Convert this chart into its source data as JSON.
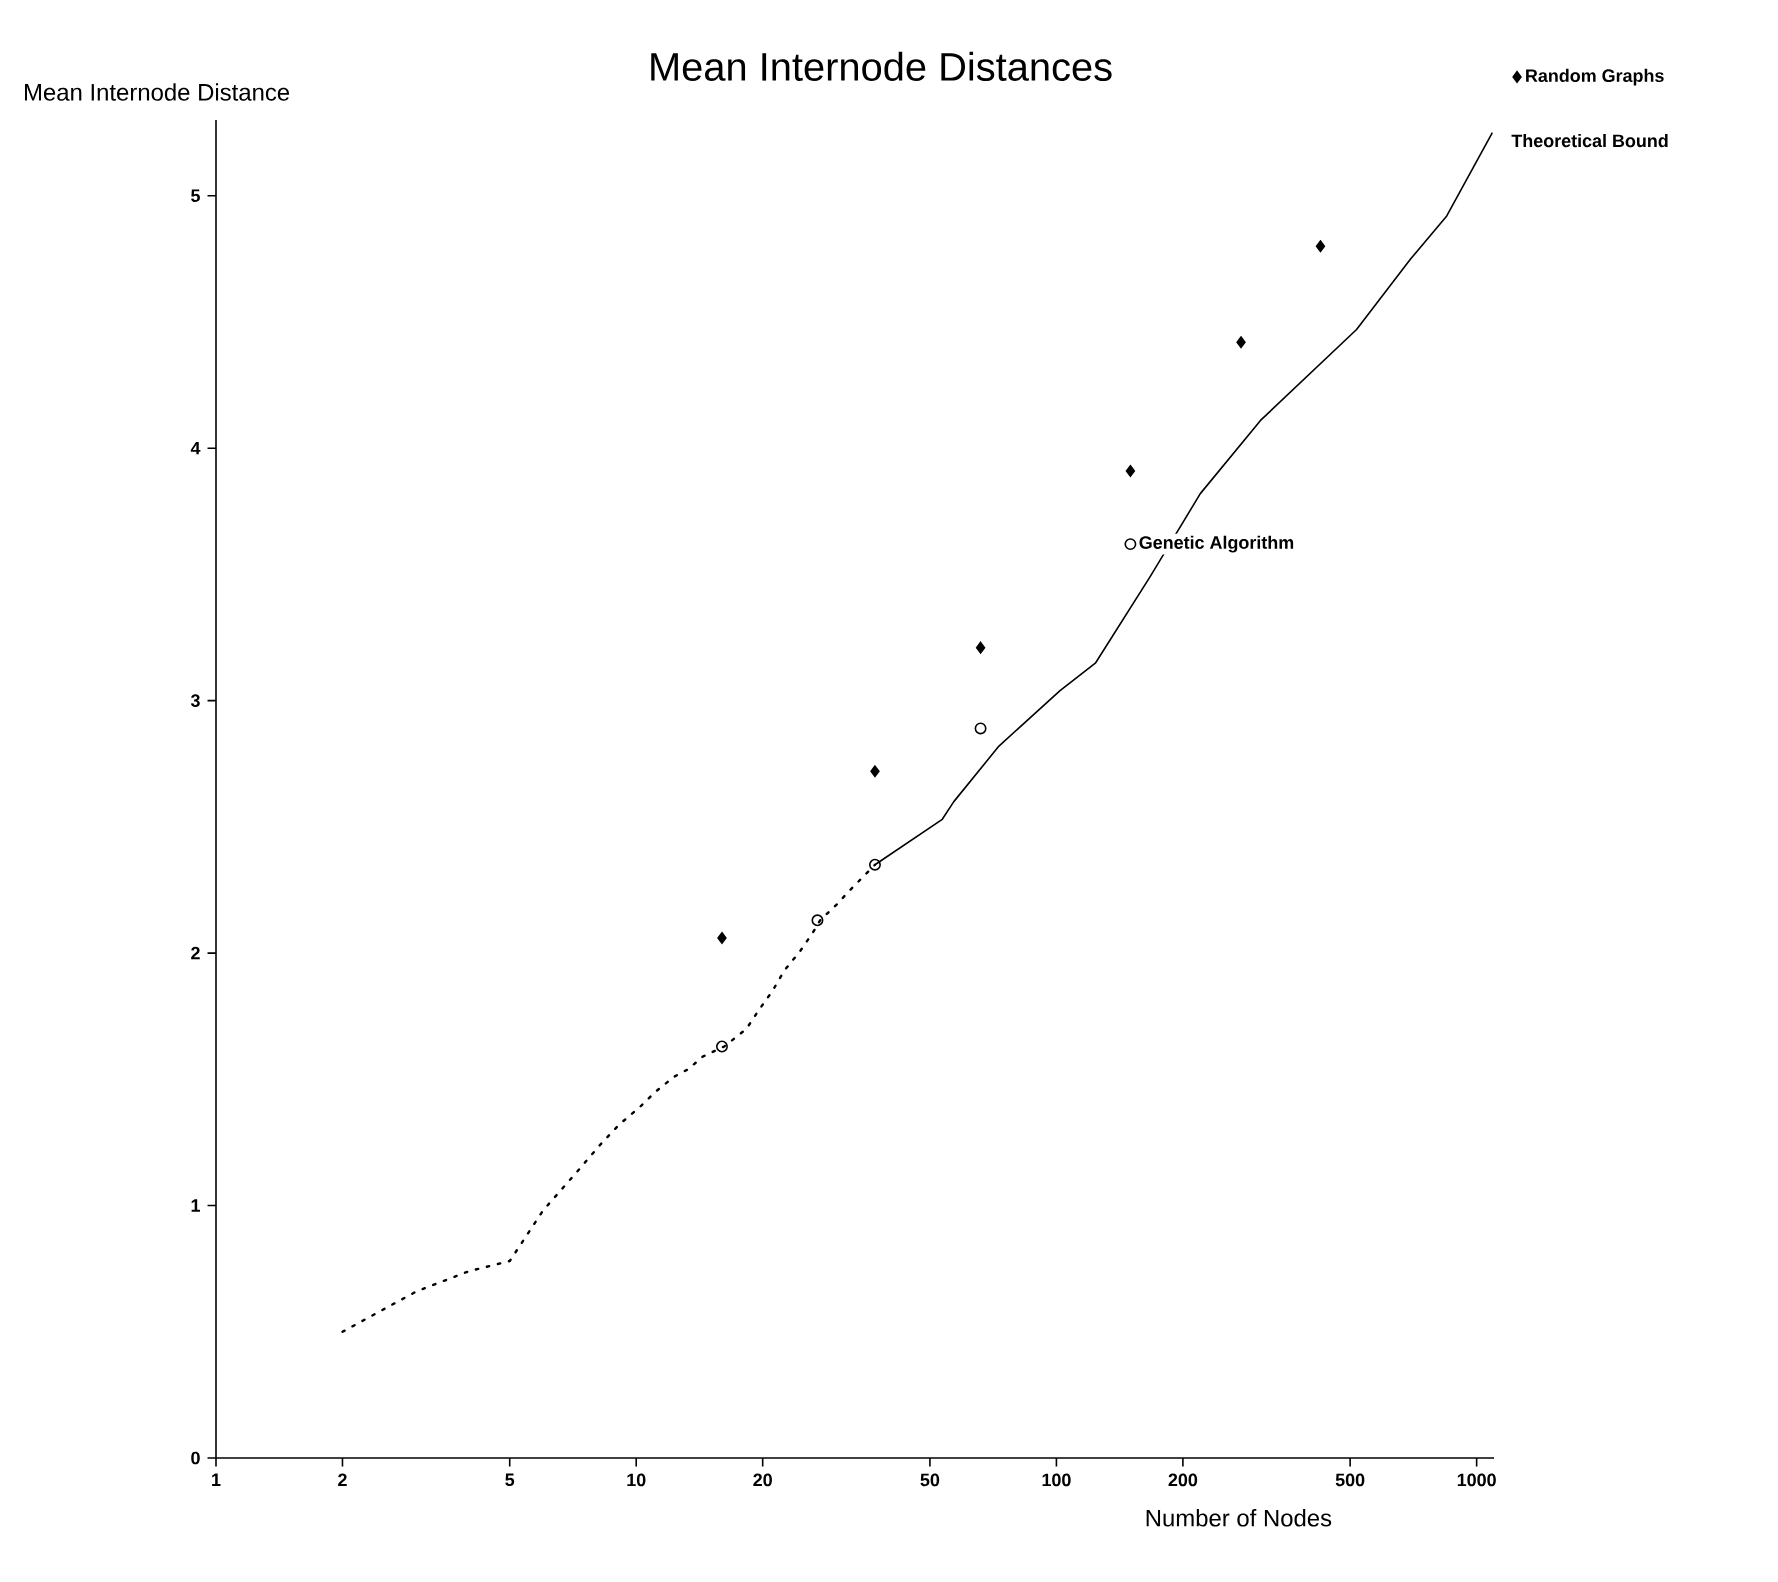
{
  "chart_data": {
    "type": "scatter",
    "title": "Mean Internode Distances",
    "xlabel": "Number of Nodes",
    "ylabel": "Mean Internode Distance",
    "log": "x",
    "xlim": [
      1,
      1100
    ],
    "ylim": [
      0,
      5.3
    ],
    "xticks": [
      1,
      2,
      5,
      10,
      20,
      50,
      100,
      200,
      500,
      1000
    ],
    "yticks": [
      0,
      1,
      2,
      3,
      4,
      5
    ],
    "grid": false,
    "legend": "top right",
    "series": [
      {
        "name": "Random Graphs",
        "marker": "diamond",
        "color": "#000000",
        "x": [
          16,
          37,
          66,
          150,
          275,
          425
        ],
        "values": [
          2.06,
          2.72,
          3.21,
          3.91,
          4.42,
          4.8
        ]
      },
      {
        "name": "Genetic Algorithm",
        "marker": "circle",
        "color": "#000000",
        "x": [
          16,
          27,
          37,
          66,
          150
        ],
        "values": [
          1.63,
          2.13,
          2.35,
          2.89,
          3.62
        ]
      },
      {
        "type": "line",
        "line_style": "dotted",
        "color": "#000000",
        "x": [
          2,
          3,
          4,
          5,
          6,
          7.2,
          8.2,
          9.1,
          10.2,
          11.1,
          12.3,
          13.3,
          14.4,
          16.2,
          18.3,
          19.5,
          21.1,
          22.5,
          24.6,
          26.3,
          27.4,
          29.9,
          32.3,
          37
        ],
        "values": [
          0.5,
          0.66,
          0.74,
          0.78,
          0.98,
          1.13,
          1.24,
          1.32,
          1.39,
          1.45,
          1.51,
          1.54,
          1.59,
          1.63,
          1.7,
          1.77,
          1.85,
          1.93,
          2.01,
          2.08,
          2.13,
          2.19,
          2.25,
          2.35
        ]
      },
      {
        "name": "Theoretical Bound",
        "type": "line",
        "line_style": "solid",
        "color": "#000000",
        "x": [
          37,
          53.5,
          57,
          73,
          102,
          124,
          167,
          220,
          306,
          518,
          697,
          849,
          1090
        ],
        "values": [
          2.35,
          2.53,
          2.6,
          2.82,
          3.04,
          3.15,
          3.49,
          3.82,
          4.11,
          4.47,
          4.75,
          4.92,
          5.25
        ]
      }
    ]
  }
}
